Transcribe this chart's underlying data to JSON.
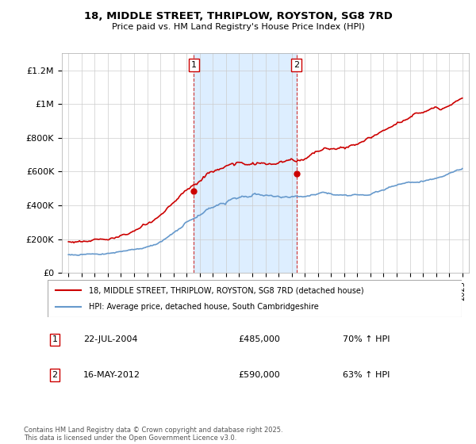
{
  "title_line1": "18, MIDDLE STREET, THRIPLOW, ROYSTON, SG8 7RD",
  "title_line2": "Price paid vs. HM Land Registry's House Price Index (HPI)",
  "legend_label_red": "18, MIDDLE STREET, THRIPLOW, ROYSTON, SG8 7RD (detached house)",
  "legend_label_blue": "HPI: Average price, detached house, South Cambridgeshire",
  "annotation1_date": "22-JUL-2004",
  "annotation1_price": "£485,000",
  "annotation1_hpi": "70% ↑ HPI",
  "annotation2_date": "16-MAY-2012",
  "annotation2_price": "£590,000",
  "annotation2_hpi": "63% ↑ HPI",
  "footer": "Contains HM Land Registry data © Crown copyright and database right 2025.\nThis data is licensed under the Open Government Licence v3.0.",
  "color_red": "#cc0000",
  "color_blue": "#6699cc",
  "color_highlight": "#ddeeff",
  "color_vline": "#cc3333",
  "ylim": [
    0,
    1300000
  ],
  "yticks": [
    0,
    200000,
    400000,
    600000,
    800000,
    1000000,
    1200000
  ],
  "ytick_labels": [
    "£0",
    "£200K",
    "£400K",
    "£600K",
    "£800K",
    "£1M",
    "£1.2M"
  ],
  "year_start": 1995,
  "year_end": 2025,
  "annotation1_year": 2004.55,
  "annotation2_year": 2012.37,
  "sale1_price_red": 485000,
  "sale2_price_red": 590000
}
